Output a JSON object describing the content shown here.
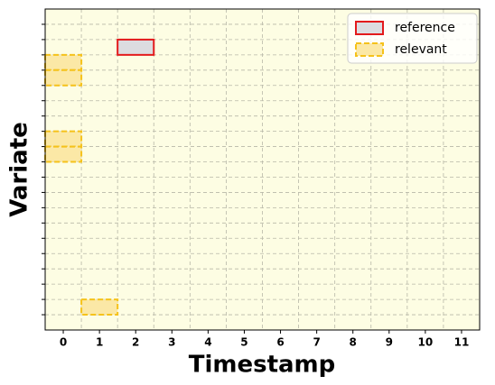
{
  "chart_data": {
    "type": "cells",
    "x_label": "Timestamp",
    "y_label": "Variate",
    "xlim": [
      -0.5,
      11.5
    ],
    "xticks": [
      0,
      1,
      2,
      3,
      4,
      5,
      6,
      7,
      8,
      9,
      10,
      11
    ],
    "ylim": [
      21,
      0
    ],
    "yticks": [
      1,
      2,
      3,
      4,
      5,
      6,
      7,
      8,
      9,
      10,
      11,
      12,
      13,
      14,
      15,
      16,
      17,
      18,
      19,
      20
    ],
    "grid": true,
    "background": "#fdfde3",
    "legend": "upper right",
    "series": [
      {
        "name": "reference",
        "color": "#e31a1c",
        "fill": "#dcdce0",
        "dashed": false,
        "cells": [
          [
            2,
            2
          ]
        ]
      },
      {
        "name": "relevant",
        "color": "#f5c21b",
        "fill": "#fbe8a6",
        "dashed": true,
        "cells": [
          [
            0,
            3
          ],
          [
            0,
            4
          ],
          [
            0,
            8
          ],
          [
            0,
            9
          ],
          [
            1,
            19
          ]
        ]
      }
    ]
  }
}
